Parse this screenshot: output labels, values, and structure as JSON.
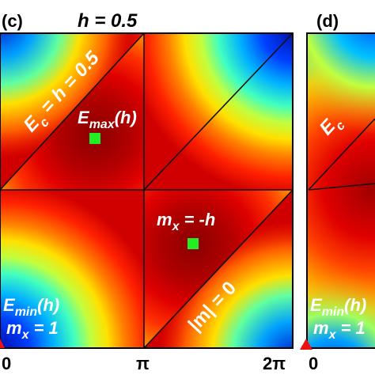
{
  "panel_c": {
    "label": "(c)",
    "title": "h = 0.5",
    "boundary_upper": "E",
    "boundary_upper_sub": "c",
    "boundary_upper_rest": " = h = 0.5",
    "emax_main": "E",
    "emax_sub": "max",
    "emax_rest": "(h)",
    "mx_main": "m",
    "mx_sub": "x",
    "mx_rest": " = -h",
    "boundary_lower": "|m| = 0",
    "emin_main": "E",
    "emin_sub": "min",
    "emin_rest": "(h)",
    "mx1_main": "m",
    "mx1_sub": "x",
    "mx1_rest": " = 1",
    "tick_labels": [
      "0",
      "π",
      "2π"
    ]
  },
  "panel_d": {
    "label": "(d)",
    "boundary_upper": "E",
    "boundary_upper_sub": "c",
    "emin_main": "E",
    "emin_sub": "min",
    "emin_rest": "(h)",
    "mx1_main": "m",
    "mx1_sub": "x",
    "mx1_rest": " = 1",
    "tick_label": "0"
  },
  "colors": {
    "marker_square": "#22ee22",
    "marker_triangle": "#ee1111",
    "line": "#111111",
    "label_text": "#ffffff",
    "axis_text": "#000000"
  },
  "icons": [
    "green-square-marker",
    "red-triangle-marker"
  ]
}
